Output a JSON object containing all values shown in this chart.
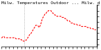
{
  "title": "Milw. Temperatures Outdoor ... Milw. d",
  "line_color": "#ff0000",
  "line_style": "--",
  "line_width": 0.8,
  "bg_color": "#ffffff",
  "vline_x": 35,
  "vline_color": "#999999",
  "vline_style": ":",
  "ylim": [
    28,
    65
  ],
  "xlim": [
    0,
    144
  ],
  "ytick_positions": [
    30,
    35,
    40,
    45,
    50,
    55,
    60,
    65
  ],
  "xtick_positions": [
    0,
    6,
    12,
    18,
    24,
    30,
    36,
    42,
    48,
    54,
    60,
    66,
    72,
    78,
    84,
    90,
    96,
    102,
    108,
    114,
    120,
    126,
    132,
    138,
    144
  ],
  "x": [
    0,
    1,
    2,
    3,
    4,
    5,
    6,
    7,
    8,
    9,
    10,
    11,
    12,
    13,
    14,
    15,
    16,
    17,
    18,
    19,
    20,
    21,
    22,
    23,
    24,
    25,
    26,
    27,
    28,
    29,
    30,
    31,
    32,
    33,
    34,
    35,
    36,
    37,
    38,
    39,
    40,
    41,
    42,
    43,
    44,
    45,
    46,
    47,
    48,
    49,
    50,
    51,
    52,
    53,
    54,
    55,
    56,
    57,
    58,
    59,
    60,
    61,
    62,
    63,
    64,
    65,
    66,
    67,
    68,
    69,
    70,
    71,
    72,
    73,
    74,
    75,
    76,
    77,
    78,
    79,
    80,
    81,
    82,
    83,
    84,
    85,
    86,
    87,
    88,
    89,
    90,
    91,
    92,
    93,
    94,
    95,
    96,
    97,
    98,
    99,
    100,
    101,
    102,
    103,
    104,
    105,
    106,
    107,
    108,
    109,
    110,
    111,
    112,
    113,
    114,
    115,
    116,
    117,
    118,
    119,
    120,
    121,
    122,
    123,
    124,
    125,
    126,
    127,
    128,
    129,
    130,
    131,
    132,
    133,
    134,
    135,
    136,
    137,
    138,
    139,
    140,
    141,
    142,
    143
  ],
  "y": [
    36,
    36,
    37,
    37,
    37,
    36,
    36,
    36,
    36,
    36,
    36,
    36,
    36,
    36,
    36,
    36,
    36,
    36,
    36,
    36,
    36,
    36,
    35,
    35,
    35,
    35,
    35,
    35,
    35,
    35,
    34,
    34,
    34,
    33,
    33,
    33,
    33,
    34,
    34,
    35,
    36,
    37,
    38,
    39,
    39,
    40,
    41,
    42,
    43,
    44,
    45,
    46,
    47,
    47,
    47,
    47,
    46,
    45,
    46,
    47,
    49,
    51,
    53,
    54,
    55,
    56,
    57,
    57,
    58,
    59,
    59,
    60,
    60,
    60,
    60,
    60,
    59,
    58,
    58,
    57,
    57,
    56,
    56,
    56,
    55,
    55,
    55,
    55,
    55,
    55,
    55,
    54,
    54,
    54,
    54,
    54,
    53,
    53,
    52,
    52,
    51,
    51,
    51,
    51,
    50,
    49,
    49,
    49,
    49,
    49,
    48,
    48,
    48,
    48,
    48,
    47,
    47,
    47,
    47,
    47,
    47,
    46,
    46,
    46,
    46,
    46,
    46,
    46,
    46,
    46,
    45,
    45,
    45,
    45,
    45,
    44,
    44,
    44,
    44,
    44,
    43,
    43,
    43,
    43
  ],
  "title_fontsize": 4.5,
  "tick_fontsize": 3.0
}
